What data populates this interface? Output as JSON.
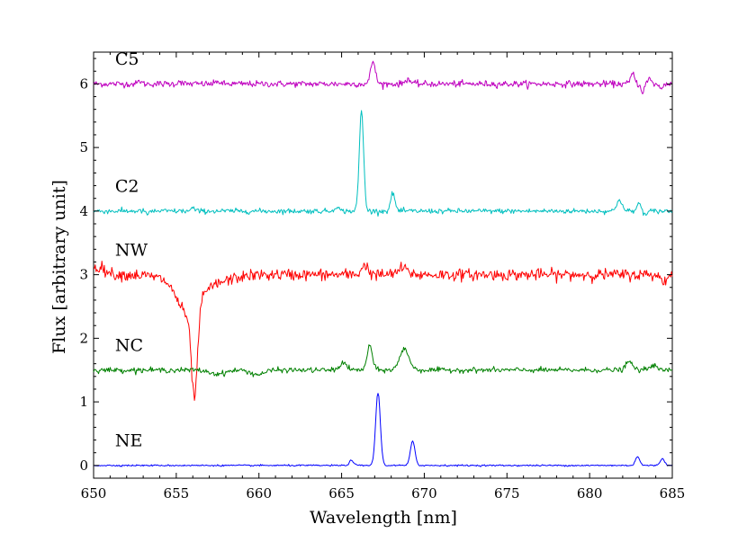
{
  "chart_data": {
    "type": "line",
    "title": "",
    "xlabel": "Wavelength [nm]",
    "ylabel": "Flux [arbitrary unit]",
    "xlim": [
      650,
      685
    ],
    "ylim": [
      -0.2,
      6.5
    ],
    "xticks": [
      650,
      655,
      660,
      665,
      670,
      675,
      680,
      685
    ],
    "yticks": [
      0,
      1,
      2,
      3,
      4,
      5,
      6
    ],
    "grid": false,
    "series": [
      {
        "name": "C5",
        "label": "C5",
        "color": "#bf00bf",
        "baseline": 6.0,
        "noise": 0.025,
        "features": [
          [
            666.9,
            0.36,
            0.14
          ],
          [
            669.0,
            0.08,
            0.15
          ],
          [
            652.8,
            0.05,
            0.1
          ],
          [
            655.2,
            0.05,
            0.1
          ],
          [
            657.5,
            0.05,
            0.1
          ],
          [
            682.6,
            0.16,
            0.12
          ],
          [
            683.2,
            -0.12,
            0.1
          ],
          [
            683.6,
            0.08,
            0.1
          ],
          [
            684.3,
            -0.08,
            0.1
          ]
        ]
      },
      {
        "name": "C2",
        "label": "C2",
        "color": "#00bfbf",
        "baseline": 4.0,
        "noise": 0.02,
        "features": [
          [
            666.2,
            1.58,
            0.13
          ],
          [
            668.1,
            0.28,
            0.13
          ],
          [
            664.7,
            0.08,
            0.12
          ],
          [
            653.3,
            -0.05,
            0.1
          ],
          [
            656.0,
            0.05,
            0.1
          ],
          [
            681.8,
            0.19,
            0.15
          ],
          [
            683.0,
            0.12,
            0.12
          ],
          [
            683.4,
            -0.07,
            0.1
          ]
        ]
      },
      {
        "name": "NW",
        "label": "NW",
        "color": "#ff0000",
        "baseline": 3.0,
        "noise": 0.045,
        "features": [
          [
            650.3,
            0.12,
            0.4
          ],
          [
            656.1,
            -1.38,
            0.18
          ],
          [
            655.7,
            -0.45,
            0.6
          ],
          [
            656.3,
            -0.2,
            1.4
          ],
          [
            666.4,
            0.15,
            0.2
          ],
          [
            668.7,
            0.1,
            0.3
          ],
          [
            684.5,
            -0.1,
            0.2
          ]
        ]
      },
      {
        "name": "NC",
        "label": "NC",
        "color": "#008000",
        "baseline": 1.5,
        "noise": 0.02,
        "features": [
          [
            666.7,
            0.38,
            0.16
          ],
          [
            668.8,
            0.33,
            0.28
          ],
          [
            665.1,
            0.12,
            0.2
          ],
          [
            659.9,
            -0.07,
            0.4
          ],
          [
            657.5,
            -0.06,
            0.5
          ],
          [
            682.4,
            0.13,
            0.2
          ],
          [
            683.8,
            0.08,
            0.2
          ]
        ]
      },
      {
        "name": "NE",
        "label": "NE",
        "color": "#0000ff",
        "baseline": 0.0,
        "noise": 0.006,
        "features": [
          [
            667.2,
            1.15,
            0.14
          ],
          [
            669.3,
            0.38,
            0.14
          ],
          [
            665.6,
            0.08,
            0.13
          ],
          [
            682.9,
            0.14,
            0.13
          ],
          [
            684.4,
            0.11,
            0.13
          ]
        ]
      }
    ],
    "annotations": [
      {
        "text": "C5",
        "x": 651.3,
        "y": 6.3
      },
      {
        "text": "C2",
        "x": 651.3,
        "y": 4.3
      },
      {
        "text": "NW",
        "x": 651.3,
        "y": 3.3
      },
      {
        "text": "NC",
        "x": 651.3,
        "y": 1.8
      },
      {
        "text": "NE",
        "x": 651.3,
        "y": 0.3
      }
    ]
  }
}
